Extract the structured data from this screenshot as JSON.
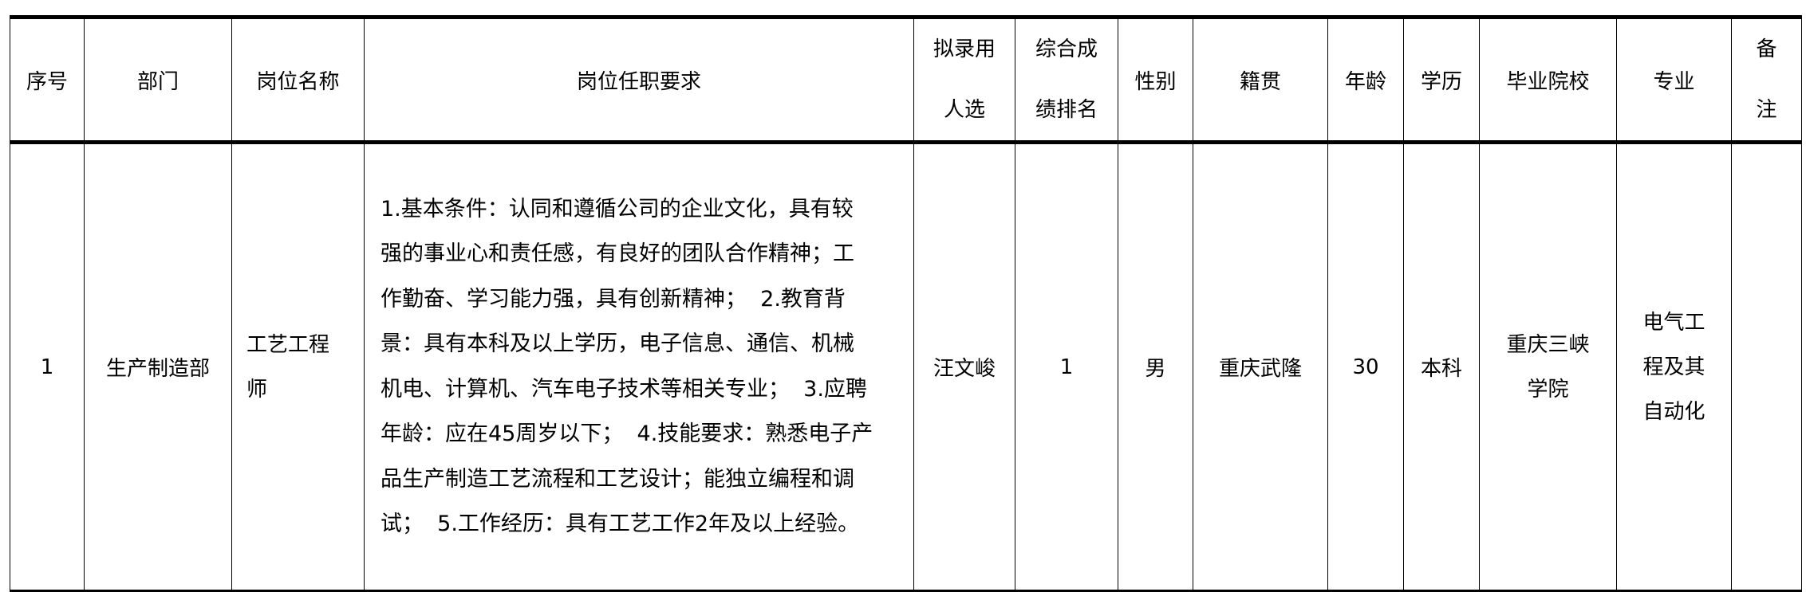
{
  "headers": {
    "seq": "序号",
    "dept": "部门",
    "position": "岗位名称",
    "requirements": "岗位任职要求",
    "candidate": [
      "拟录用",
      "人选"
    ],
    "rank": [
      "综合成",
      "绩排名"
    ],
    "gender": "性别",
    "origin": "籍贯",
    "age": "年龄",
    "education": "学历",
    "school": "毕业院校",
    "major": "专业",
    "remark": [
      "备",
      "注"
    ]
  },
  "rows": [
    {
      "seq": "1",
      "dept": "生产制造部",
      "position": [
        "工艺工程",
        "师"
      ],
      "requirements": [
        "1.基本条件：认同和遵循公司的企业文化，具有较",
        "强的事业心和责任感，有良好的团队合作精神；工",
        "作勤奋、学习能力强，具有创新精神；  2.教育背",
        "景：具有本科及以上学历，电子信息、通信、机械",
        "机电、计算机、汽车电子技术等相关专业；  3.应聘",
        "年龄：应在45周岁以下；  4.技能要求：熟悉电子产",
        "品生产制造工艺流程和工艺设计；能独立编程和调",
        "试；  5.工作经历：具有工艺工作2年及以上经验。"
      ],
      "candidate": "汪文峻",
      "rank": "1",
      "gender": "男",
      "origin": "重庆武隆",
      "age": "30",
      "education": "本科",
      "school": [
        "重庆三峡",
        "学院"
      ],
      "major": [
        "电气工",
        "程及其",
        "自动化"
      ],
      "remark": ""
    }
  ]
}
